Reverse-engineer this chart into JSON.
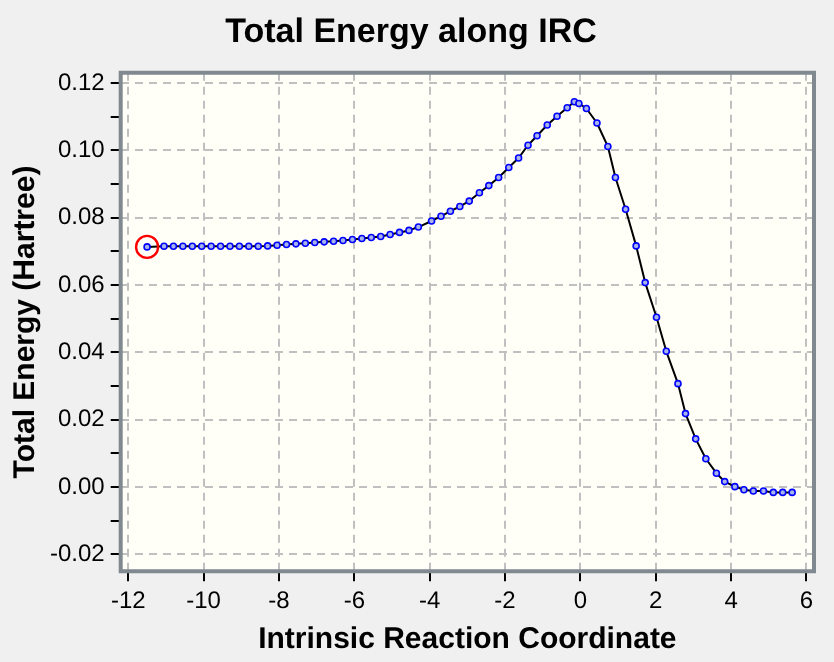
{
  "chart_data": {
    "type": "line",
    "title": "Total Energy along IRC",
    "xlabel": "Intrinsic Reaction Coordinate",
    "ylabel": "Total Energy (Hartree)",
    "xlim": [
      -12.2,
      6.2
    ],
    "xticks": [
      -12,
      -10,
      -8,
      -6,
      -4,
      -2,
      0,
      2,
      4,
      6
    ],
    "ylim": [
      -0.025,
      0.123
    ],
    "yticks": [
      {
        "value": -0.02,
        "label": "-0.02"
      },
      {
        "value": -0.01,
        "label": null
      },
      {
        "value": 0,
        "label": "0.00"
      },
      {
        "value": 0.01,
        "label": null
      },
      {
        "value": 0.02,
        "label": "0.02"
      },
      {
        "value": 0.03,
        "label": null
      },
      {
        "value": 0.04,
        "label": "0.04"
      },
      {
        "value": 0.05,
        "label": null
      },
      {
        "value": 0.06,
        "label": "0.06"
      },
      {
        "value": 0.07,
        "label": null
      },
      {
        "value": 0.08,
        "label": "0.08"
      },
      {
        "value": 0.09,
        "label": null
      },
      {
        "value": 0.1,
        "label": "0.10"
      },
      {
        "value": 0.11,
        "label": null
      },
      {
        "value": 0.12,
        "label": "0.12"
      }
    ],
    "grid": true,
    "legend": false,
    "marker": "circle",
    "line_style": "solid",
    "series": [
      {
        "color": "#0000ff",
        "x": [
          -11.5,
          -11.05,
          -10.8,
          -10.55,
          -10.3,
          -10.05,
          -9.8,
          -9.55,
          -9.3,
          -9.05,
          -8.8,
          -8.55,
          -8.3,
          -8.05,
          -7.8,
          -7.55,
          -7.3,
          -7.05,
          -6.8,
          -6.55,
          -6.3,
          -6.05,
          -5.8,
          -5.55,
          -5.3,
          -5.05,
          -4.8,
          -4.55,
          -4.3,
          -3.95,
          -3.7,
          -3.45,
          -3.2,
          -2.95,
          -2.68,
          -2.43,
          -2.17,
          -1.9,
          -1.64,
          -1.39,
          -1.15,
          -0.88,
          -0.62,
          -0.35,
          -0.16,
          -0.04,
          0.16,
          0.44,
          0.73,
          0.93,
          1.2,
          1.48,
          1.72,
          2.02,
          2.28,
          2.59,
          2.79,
          3.06,
          3.33,
          3.61,
          3.83,
          4.1,
          4.34,
          4.59,
          4.86,
          5.12,
          5.37,
          5.62
        ],
        "values": [
          0.0713,
          0.0715,
          0.0715,
          0.0715,
          0.0715,
          0.0715,
          0.0715,
          0.0715,
          0.0715,
          0.0715,
          0.0715,
          0.0715,
          0.0716,
          0.0718,
          0.072,
          0.0722,
          0.0724,
          0.0726,
          0.0728,
          0.073,
          0.0732,
          0.0735,
          0.0738,
          0.0741,
          0.0744,
          0.075,
          0.0756,
          0.0762,
          0.0772,
          0.079,
          0.0804,
          0.0819,
          0.0833,
          0.0849,
          0.0874,
          0.0895,
          0.0919,
          0.0949,
          0.0977,
          0.1015,
          0.1043,
          0.1075,
          0.1101,
          0.1126,
          0.1144,
          0.1139,
          0.1124,
          0.1081,
          0.1011,
          0.0919,
          0.0825,
          0.0716,
          0.0607,
          0.0504,
          0.0403,
          0.0307,
          0.0218,
          0.0143,
          0.0084,
          0.0041,
          0.0016,
          0.0001,
          -0.0008,
          -0.0012,
          -0.0012,
          -0.0016,
          -0.0016,
          -0.0016
        ]
      },
      {
        "type": "scatter",
        "color": "#ff0000",
        "x": [
          -11.5
        ],
        "values": [
          0.0713
        ]
      }
    ]
  }
}
